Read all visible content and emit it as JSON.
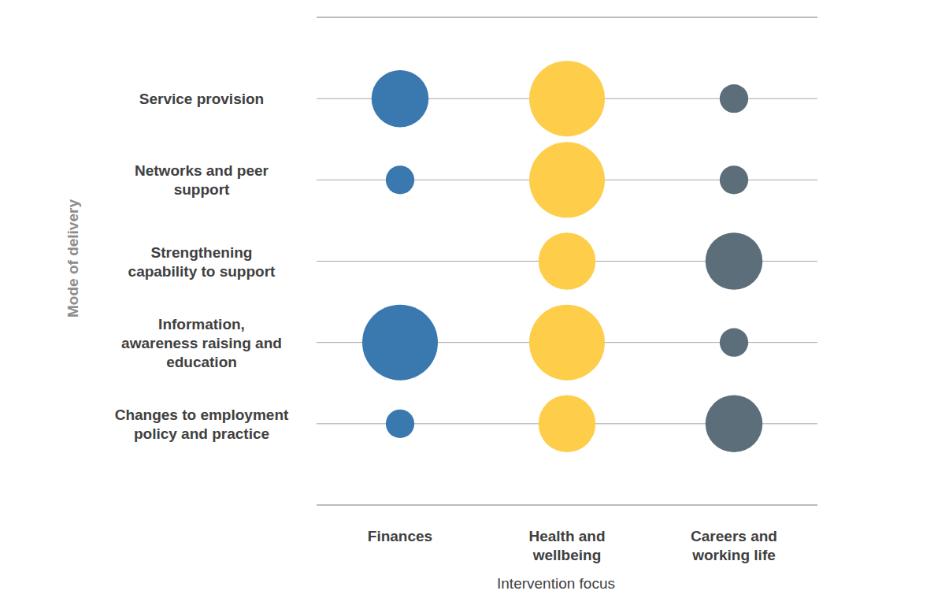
{
  "chart_data": {
    "type": "bubble",
    "x_label": "Intervention focus",
    "y_label": "Mode of delivery",
    "categories": [
      "Finances",
      "Health and wellbeing",
      "Careers and working life"
    ],
    "rows": [
      "Service provision",
      "Networks and peer support",
      "Strengthening capability to support",
      "Information, awareness raising and education",
      "Changes to employment policy and practice"
    ],
    "series": [
      {
        "name": "Finances",
        "color": "#3a78b0",
        "sizes": [
          4,
          1,
          null,
          7,
          1
        ]
      },
      {
        "name": "Health and wellbeing",
        "color": "#fecd4a",
        "sizes": [
          7,
          7,
          4,
          7,
          4
        ]
      },
      {
        "name": "Careers and working life",
        "color": "#5b6e7a",
        "sizes": [
          1,
          1,
          4,
          1,
          4
        ]
      }
    ],
    "grid": true
  }
}
